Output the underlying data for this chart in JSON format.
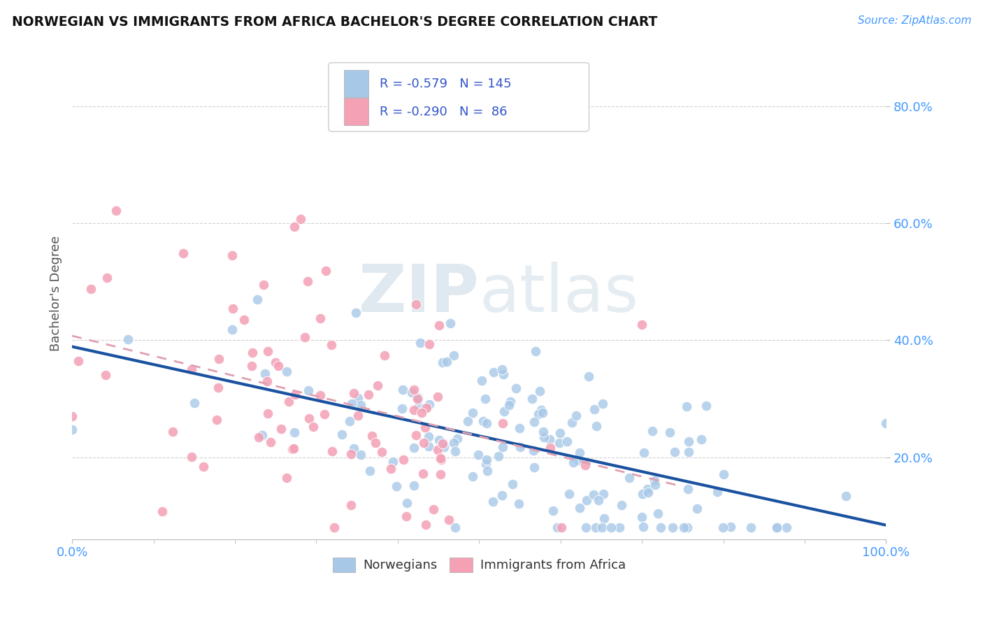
{
  "title": "NORWEGIAN VS IMMIGRANTS FROM AFRICA BACHELOR'S DEGREE CORRELATION CHART",
  "source": "Source: ZipAtlas.com",
  "ylabel": "Bachelor's Degree",
  "legend_label1": "Norwegians",
  "legend_label2": "Immigrants from Africa",
  "blue_scatter_color": "#a8c8e8",
  "pink_scatter_color": "#f4a0b5",
  "blue_line_color": "#1a52a0",
  "pink_line_color": "#e8a0b0",
  "watermark_color": "#d0dce8",
  "background_color": "#ffffff",
  "grid_color": "#cccccc",
  "tick_color": "#4499ff",
  "title_color": "#111111",
  "source_color": "#4499ff",
  "ylabel_color": "#555555",
  "r1": -0.579,
  "n1": 145,
  "r2": -0.29,
  "n2": 86,
  "xmin": 0.0,
  "xmax": 1.0,
  "ymin": 0.06,
  "ymax": 0.9,
  "ytick_vals": [
    0.2,
    0.4,
    0.6,
    0.8
  ],
  "ytick_labels": [
    "20.0%",
    "40.0%",
    "60.0%",
    "80.0%"
  ],
  "xtick_vals": [
    0.0,
    1.0
  ],
  "xtick_labels": [
    "0.0%",
    "100.0%"
  ]
}
